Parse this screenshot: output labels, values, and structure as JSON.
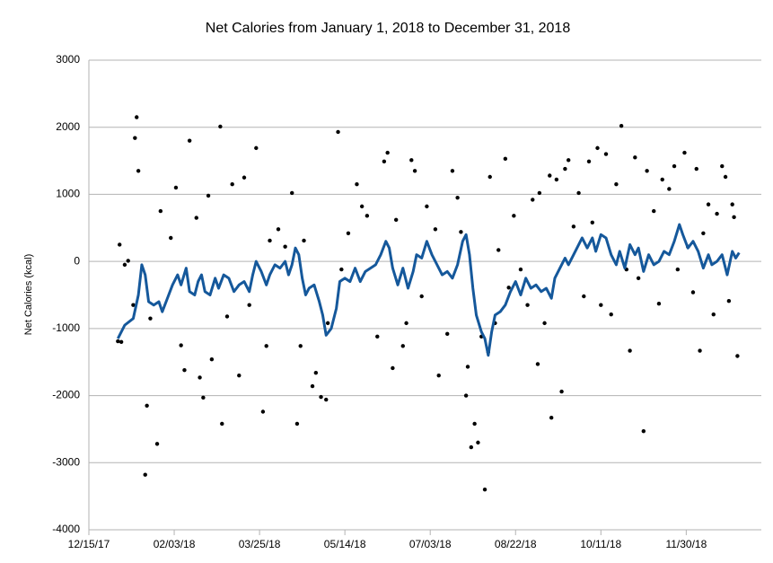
{
  "chart_data": {
    "type": "scatter",
    "title": "Net Calories from January 1, 2018 to December 31, 2018",
    "y_label": "Net Calories (kcal)",
    "xlim": [
      "2017-12-15",
      "2019-01-13"
    ],
    "xticks": [
      {
        "value": "2017-12-15",
        "label": "12/15/17"
      },
      {
        "value": "2018-02-03",
        "label": "02/03/18"
      },
      {
        "value": "2018-03-25",
        "label": "03/25/18"
      },
      {
        "value": "2018-05-14",
        "label": "05/14/18"
      },
      {
        "value": "2018-07-03",
        "label": "07/03/18"
      },
      {
        "value": "2018-08-22",
        "label": "08/22/18"
      },
      {
        "value": "2018-10-11",
        "label": "10/11/18"
      },
      {
        "value": "2018-11-30",
        "label": "11/30/18"
      }
    ],
    "ylim": [
      -4000,
      3000
    ],
    "yticks": [
      -4000,
      -3000,
      -2000,
      -1000,
      0,
      1000,
      2000,
      3000
    ],
    "grid": true,
    "series": [
      {
        "type": "scatter",
        "color": "#000000",
        "x": [
          "2018-01-01",
          "2018-01-02",
          "2018-01-03",
          "2018-01-05",
          "2018-01-07",
          "2018-01-10",
          "2018-01-11",
          "2018-01-12",
          "2018-01-13",
          "2018-01-17",
          "2018-01-18",
          "2018-01-20",
          "2018-01-24",
          "2018-01-26",
          "2018-02-01",
          "2018-02-04",
          "2018-02-07",
          "2018-02-09",
          "2018-02-12",
          "2018-02-16",
          "2018-02-18",
          "2018-02-20",
          "2018-02-23",
          "2018-02-25",
          "2018-03-02",
          "2018-03-03",
          "2018-03-06",
          "2018-03-09",
          "2018-03-13",
          "2018-03-16",
          "2018-03-19",
          "2018-03-23",
          "2018-03-27",
          "2018-03-29",
          "2018-03-31",
          "2018-04-05",
          "2018-04-09",
          "2018-04-13",
          "2018-04-16",
          "2018-04-18",
          "2018-04-20",
          "2018-04-25",
          "2018-04-27",
          "2018-04-30",
          "2018-05-03",
          "2018-05-04",
          "2018-05-10",
          "2018-05-12",
          "2018-05-16",
          "2018-05-21",
          "2018-05-24",
          "2018-05-27",
          "2018-06-02",
          "2018-06-06",
          "2018-06-08",
          "2018-06-11",
          "2018-06-13",
          "2018-06-17",
          "2018-06-19",
          "2018-06-22",
          "2018-06-24",
          "2018-06-28",
          "2018-07-01",
          "2018-07-06",
          "2018-07-08",
          "2018-07-13",
          "2018-07-16",
          "2018-07-19",
          "2018-07-21",
          "2018-07-24",
          "2018-07-25",
          "2018-07-27",
          "2018-07-29",
          "2018-07-31",
          "2018-08-02",
          "2018-08-04",
          "2018-08-06",
          "2018-08-07",
          "2018-08-10",
          "2018-08-12",
          "2018-08-16",
          "2018-08-18",
          "2018-08-21",
          "2018-08-25",
          "2018-08-29",
          "2018-09-01",
          "2018-09-04",
          "2018-09-05",
          "2018-09-08",
          "2018-09-11",
          "2018-09-12",
          "2018-09-15",
          "2018-09-18",
          "2018-09-20",
          "2018-09-22",
          "2018-09-25",
          "2018-09-28",
          "2018-10-01",
          "2018-10-04",
          "2018-10-06",
          "2018-10-09",
          "2018-10-11",
          "2018-10-14",
          "2018-10-17",
          "2018-10-20",
          "2018-10-23",
          "2018-10-26",
          "2018-10-28",
          "2018-10-31",
          "2018-11-02",
          "2018-11-05",
          "2018-11-07",
          "2018-11-11",
          "2018-11-14",
          "2018-11-16",
          "2018-11-20",
          "2018-11-23",
          "2018-11-25",
          "2018-11-29",
          "2018-12-01",
          "2018-12-04",
          "2018-12-06",
          "2018-12-08",
          "2018-12-10",
          "2018-12-13",
          "2018-12-16",
          "2018-12-18",
          "2018-12-21",
          "2018-12-23",
          "2018-12-25",
          "2018-12-27",
          "2018-12-28",
          "2018-12-30"
        ],
        "values": [
          -1190,
          250,
          -1200,
          -50,
          10,
          -650,
          1840,
          2150,
          1350,
          -3180,
          -2150,
          -850,
          -2720,
          750,
          350,
          1100,
          -1250,
          -1620,
          1800,
          650,
          -1730,
          -2030,
          980,
          -1460,
          2010,
          -2420,
          -820,
          1150,
          -1700,
          1250,
          -650,
          1690,
          -2240,
          -1260,
          310,
          480,
          220,
          1020,
          -2420,
          -1260,
          310,
          -1860,
          -1660,
          -2020,
          -2060,
          -920,
          1930,
          -120,
          420,
          1150,
          820,
          680,
          -1120,
          1490,
          1620,
          -1590,
          620,
          -1260,
          -920,
          1510,
          1350,
          -520,
          820,
          480,
          -1700,
          -1080,
          1350,
          950,
          440,
          -2000,
          -1570,
          -2770,
          -2420,
          -2700,
          -1120,
          -3400,
          -1350,
          1260,
          -920,
          170,
          1530,
          -390,
          680,
          -120,
          -650,
          920,
          -1530,
          1020,
          -920,
          1280,
          -2330,
          1220,
          -1940,
          1380,
          1510,
          520,
          1020,
          -520,
          1490,
          580,
          1690,
          -650,
          1600,
          -790,
          1150,
          2020,
          -120,
          -1330,
          1550,
          -250,
          -2530,
          1350,
          750,
          -630,
          1220,
          1080,
          1420,
          -120,
          1620,
          220,
          -460,
          1380,
          -1330,
          420,
          850,
          -790,
          710,
          1420,
          1260,
          -590,
          850,
          660,
          -1410
        ]
      },
      {
        "type": "line",
        "color": "#15589b",
        "x": [
          "2018-01-01",
          "2018-01-05",
          "2018-01-10",
          "2018-01-13",
          "2018-01-15",
          "2018-01-17",
          "2018-01-19",
          "2018-01-22",
          "2018-01-25",
          "2018-01-27",
          "2018-01-30",
          "2018-02-02",
          "2018-02-05",
          "2018-02-07",
          "2018-02-10",
          "2018-02-12",
          "2018-02-15",
          "2018-02-17",
          "2018-02-19",
          "2018-02-21",
          "2018-02-24",
          "2018-02-27",
          "2018-03-01",
          "2018-03-04",
          "2018-03-07",
          "2018-03-10",
          "2018-03-13",
          "2018-03-16",
          "2018-03-19",
          "2018-03-21",
          "2018-03-23",
          "2018-03-26",
          "2018-03-29",
          "2018-03-31",
          "2018-04-03",
          "2018-04-06",
          "2018-04-09",
          "2018-04-11",
          "2018-04-13",
          "2018-04-15",
          "2018-04-17",
          "2018-04-19",
          "2018-04-21",
          "2018-04-23",
          "2018-04-26",
          "2018-04-29",
          "2018-05-01",
          "2018-05-03",
          "2018-05-06",
          "2018-05-09",
          "2018-05-11",
          "2018-05-14",
          "2018-05-17",
          "2018-05-20",
          "2018-05-23",
          "2018-05-26",
          "2018-05-29",
          "2018-06-01",
          "2018-06-04",
          "2018-06-07",
          "2018-06-09",
          "2018-06-11",
          "2018-06-14",
          "2018-06-17",
          "2018-06-20",
          "2018-06-23",
          "2018-06-25",
          "2018-06-28",
          "2018-07-01",
          "2018-07-04",
          "2018-07-07",
          "2018-07-10",
          "2018-07-13",
          "2018-07-16",
          "2018-07-19",
          "2018-07-22",
          "2018-07-24",
          "2018-07-26",
          "2018-07-28",
          "2018-07-30",
          "2018-08-02",
          "2018-08-04",
          "2018-08-06",
          "2018-08-08",
          "2018-08-10",
          "2018-08-13",
          "2018-08-16",
          "2018-08-19",
          "2018-08-22",
          "2018-08-25",
          "2018-08-28",
          "2018-08-31",
          "2018-09-03",
          "2018-09-06",
          "2018-09-09",
          "2018-09-12",
          "2018-09-14",
          "2018-09-17",
          "2018-09-20",
          "2018-09-22",
          "2018-09-25",
          "2018-09-28",
          "2018-09-30",
          "2018-10-03",
          "2018-10-06",
          "2018-10-08",
          "2018-10-11",
          "2018-10-14",
          "2018-10-17",
          "2018-10-20",
          "2018-10-22",
          "2018-10-25",
          "2018-10-28",
          "2018-10-31",
          "2018-11-02",
          "2018-11-05",
          "2018-11-08",
          "2018-11-11",
          "2018-11-14",
          "2018-11-17",
          "2018-11-20",
          "2018-11-23",
          "2018-11-26",
          "2018-11-28",
          "2018-12-01",
          "2018-12-04",
          "2018-12-07",
          "2018-12-10",
          "2018-12-13",
          "2018-12-15",
          "2018-12-18",
          "2018-12-21",
          "2018-12-24",
          "2018-12-27",
          "2018-12-29",
          "2018-12-31"
        ],
        "values": [
          -1150,
          -950,
          -850,
          -500,
          -50,
          -200,
          -600,
          -650,
          -600,
          -750,
          -550,
          -350,
          -200,
          -350,
          -100,
          -450,
          -500,
          -300,
          -200,
          -450,
          -500,
          -250,
          -400,
          -200,
          -250,
          -450,
          -350,
          -300,
          -450,
          -200,
          0,
          -150,
          -350,
          -200,
          -50,
          -100,
          0,
          -200,
          -50,
          200,
          100,
          -250,
          -500,
          -400,
          -350,
          -600,
          -800,
          -1100,
          -1000,
          -700,
          -300,
          -250,
          -300,
          -100,
          -300,
          -150,
          -100,
          -50,
          100,
          300,
          200,
          -100,
          -350,
          -100,
          -400,
          -150,
          100,
          50,
          300,
          100,
          -50,
          -200,
          -150,
          -250,
          -50,
          300,
          400,
          100,
          -400,
          -800,
          -1050,
          -1150,
          -1400,
          -1050,
          -800,
          -750,
          -650,
          -450,
          -300,
          -500,
          -250,
          -400,
          -350,
          -450,
          -400,
          -550,
          -250,
          -100,
          50,
          -50,
          100,
          250,
          350,
          200,
          350,
          150,
          400,
          350,
          100,
          -50,
          150,
          -100,
          250,
          100,
          200,
          -150,
          100,
          -50,
          0,
          150,
          100,
          300,
          550,
          400,
          200,
          300,
          150,
          -100,
          100,
          -50,
          0,
          100,
          -200,
          150,
          50,
          130
        ]
      }
    ]
  }
}
